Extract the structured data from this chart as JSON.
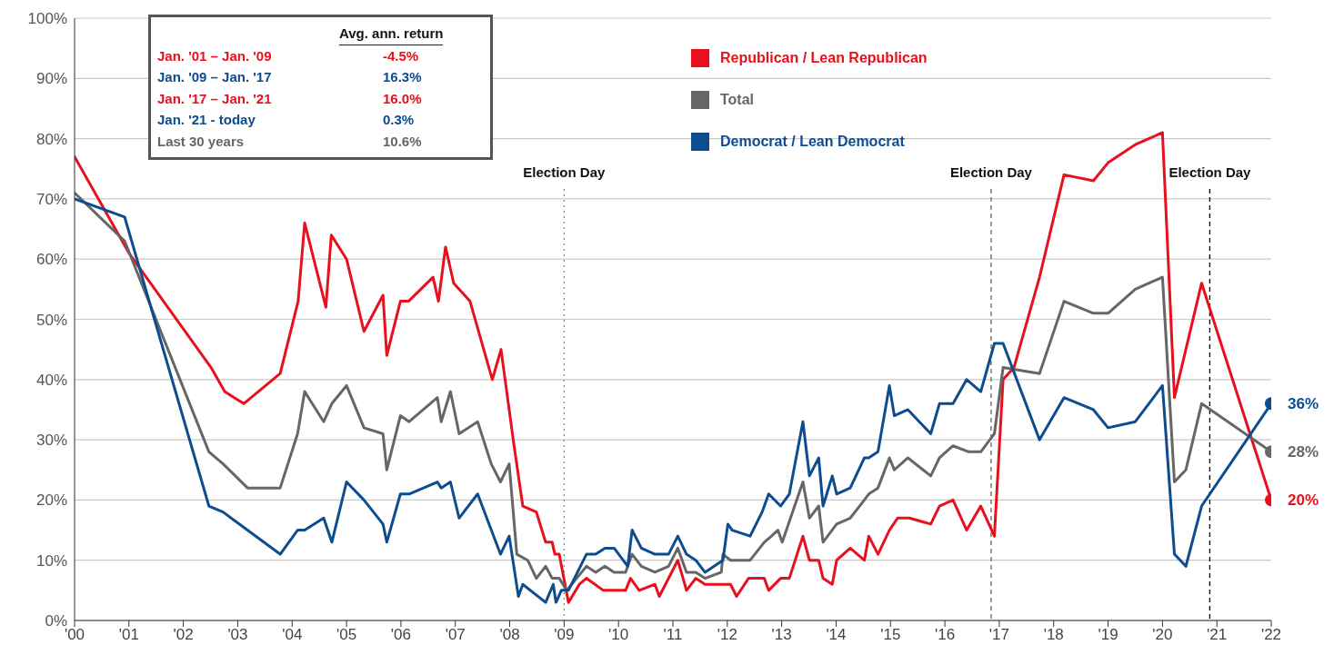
{
  "chart_data": {
    "type": "line",
    "xlim": [
      2000,
      2022
    ],
    "xticks": [
      {
        "value": 2000,
        "label": "'00"
      },
      {
        "value": 2001,
        "label": "'01"
      },
      {
        "value": 2002,
        "label": "'02"
      },
      {
        "value": 2003,
        "label": "'03"
      },
      {
        "value": 2004,
        "label": "'04"
      },
      {
        "value": 2005,
        "label": "'05"
      },
      {
        "value": 2006,
        "label": "'06"
      },
      {
        "value": 2007,
        "label": "'07"
      },
      {
        "value": 2008,
        "label": "'08"
      },
      {
        "value": 2009,
        "label": "'09"
      },
      {
        "value": 2010,
        "label": "'10"
      },
      {
        "value": 2011,
        "label": "'11"
      },
      {
        "value": 2012,
        "label": "'12"
      },
      {
        "value": 2013,
        "label": "'13"
      },
      {
        "value": 2014,
        "label": "'14"
      },
      {
        "value": 2015,
        "label": "'15"
      },
      {
        "value": 2016,
        "label": "'16"
      },
      {
        "value": 2017,
        "label": "'17"
      },
      {
        "value": 2018,
        "label": "'18"
      },
      {
        "value": 2019,
        "label": "'19"
      },
      {
        "value": 2020,
        "label": "'20"
      },
      {
        "value": 2021,
        "label": "'21"
      },
      {
        "value": 2022,
        "label": "'22"
      }
    ],
    "ylim": [
      0,
      100
    ],
    "yticks": [
      {
        "value": 0,
        "label": "0%"
      },
      {
        "value": 10,
        "label": "10%"
      },
      {
        "value": 20,
        "label": "20%"
      },
      {
        "value": 30,
        "label": "30%"
      },
      {
        "value": 40,
        "label": "40%"
      },
      {
        "value": 50,
        "label": "50%"
      },
      {
        "value": 60,
        "label": "60%"
      },
      {
        "value": 70,
        "label": "70%"
      },
      {
        "value": 80,
        "label": "80%"
      },
      {
        "value": 90,
        "label": "90%"
      },
      {
        "value": 100,
        "label": "100%"
      }
    ],
    "grid": "y",
    "legend": "top",
    "series": [
      {
        "name": "Republican / Lean Republican",
        "color": "#e8101c",
        "x": [
          2000,
          2001,
          2002.51,
          2002.76,
          2003.11,
          2003.78,
          2004.11,
          2004.23,
          2004.62,
          2004.72,
          2005,
          2005.32,
          2005.67,
          2005.74,
          2005.99,
          2006.14,
          2006.59,
          2006.69,
          2006.82,
          2006.97,
          2007.27,
          2007.68,
          2007.84,
          2008.08,
          2008.24,
          2008.49,
          2008.66,
          2008.78,
          2008.83,
          2008.91,
          2009.08,
          2009.28,
          2009.41,
          2009.72,
          2010.13,
          2010.22,
          2010.38,
          2010.67,
          2010.75,
          2011.09,
          2011.25,
          2011.42,
          2011.59,
          2012.06,
          2012.17,
          2012.39,
          2012.68,
          2012.76,
          2012.98,
          2013.14,
          2013.39,
          2013.51,
          2013.68,
          2013.76,
          2013.93,
          2014.01,
          2014.26,
          2014.52,
          2014.6,
          2014.77,
          2014.98,
          2015.13,
          2015.35,
          2015.74,
          2015.9,
          2016.15,
          2016.4,
          2016.66,
          2016.91,
          2017.07,
          2017.27,
          2017.74,
          2018.19,
          2018.73,
          2019,
          2019.5,
          2020,
          2020.22,
          2020.72,
          2022
        ],
        "values": [
          77,
          61,
          42,
          38,
          36,
          41,
          53,
          66,
          52,
          64,
          60,
          48,
          54,
          44,
          53,
          53,
          57,
          53,
          62,
          56,
          53,
          40,
          45,
          29,
          19,
          18,
          13,
          13,
          11,
          11,
          3,
          6,
          7,
          5,
          5,
          7,
          5,
          6,
          4,
          10,
          5,
          7,
          6,
          6,
          4,
          7,
          7,
          5,
          7,
          7,
          14,
          10,
          10,
          7,
          6,
          10,
          12,
          10,
          14,
          11,
          15,
          17,
          17,
          16,
          19,
          20,
          15,
          19,
          14,
          40,
          42,
          57,
          74,
          73,
          76,
          79,
          81,
          37,
          56,
          20
        ]
      },
      {
        "name": "Total",
        "color": "#666666",
        "x": [
          2000,
          2000.92,
          2002.47,
          2002.73,
          2003.18,
          2003.78,
          2004.1,
          2004.23,
          2004.58,
          2004.73,
          2005,
          2005.32,
          2005.67,
          2005.74,
          2005.99,
          2006.15,
          2006.67,
          2006.74,
          2006.91,
          2007.07,
          2007.41,
          2007.66,
          2007.83,
          2007.99,
          2008.13,
          2008.33,
          2008.49,
          2008.66,
          2008.78,
          2008.91,
          2009.05,
          2009.41,
          2009.58,
          2009.75,
          2009.92,
          2010.13,
          2010.25,
          2010.42,
          2010.67,
          2010.92,
          2011.09,
          2011.25,
          2011.42,
          2011.59,
          2011.89,
          2011.92,
          2012.06,
          2012.42,
          2012.68,
          2012.81,
          2012.93,
          2013.01,
          2013.39,
          2013.51,
          2013.68,
          2013.76,
          2014.01,
          2014.26,
          2014.52,
          2014.6,
          2014.77,
          2014.98,
          2015.07,
          2015.32,
          2015.74,
          2015.9,
          2016.15,
          2016.44,
          2016.66,
          2016.91,
          2017.07,
          2017.74,
          2018.19,
          2018.73,
          2019,
          2019.5,
          2020,
          2020.22,
          2020.43,
          2020.72,
          2022
        ],
        "values": [
          71,
          63,
          28,
          26,
          22,
          22,
          31,
          38,
          33,
          36,
          39,
          32,
          31,
          25,
          34,
          33,
          37,
          33,
          38,
          31,
          33,
          26,
          23,
          26,
          11,
          10,
          7,
          9,
          7,
          7,
          5,
          9,
          8,
          9,
          8,
          8,
          11,
          9,
          8,
          9,
          12,
          8,
          8,
          7,
          8,
          11,
          10,
          10,
          13,
          14,
          15,
          13,
          23,
          17,
          19,
          13,
          16,
          17,
          20,
          21,
          22,
          27,
          25,
          27,
          24,
          27,
          29,
          28,
          28,
          31,
          42,
          41,
          53,
          51,
          51,
          55,
          57,
          23,
          25,
          36,
          28
        ]
      },
      {
        "name": "Democrat / Lean Democrat",
        "color": "#0d4c8f",
        "x": [
          2000,
          2000.92,
          2002.47,
          2002.73,
          2003.78,
          2004.1,
          2004.23,
          2004.58,
          2004.73,
          2005,
          2005.32,
          2005.67,
          2005.74,
          2005.99,
          2006.15,
          2006.67,
          2006.74,
          2006.91,
          2007.07,
          2007.41,
          2007.83,
          2007.99,
          2008.16,
          2008.24,
          2008.66,
          2008.8,
          2008.85,
          2008.95,
          2009.08,
          2009.41,
          2009.58,
          2009.75,
          2009.92,
          2010.17,
          2010.25,
          2010.42,
          2010.67,
          2010.92,
          2011.09,
          2011.25,
          2011.42,
          2011.59,
          2011.92,
          2012.01,
          2012.09,
          2012.42,
          2012.64,
          2012.76,
          2012.98,
          2013.14,
          2013.39,
          2013.51,
          2013.68,
          2013.76,
          2013.93,
          2014.01,
          2014.26,
          2014.52,
          2014.6,
          2014.77,
          2014.98,
          2015.07,
          2015.32,
          2015.74,
          2015.9,
          2016.15,
          2016.4,
          2016.66,
          2016.91,
          2017.07,
          2017.74,
          2018.19,
          2018.73,
          2019,
          2019.5,
          2020,
          2020.22,
          2020.43,
          2020.72,
          2022
        ],
        "values": [
          70,
          67,
          19,
          18,
          11,
          15,
          15,
          17,
          13,
          23,
          20,
          16,
          13,
          21,
          21,
          23,
          22,
          23,
          17,
          21,
          11,
          14,
          4,
          6,
          3,
          6,
          3,
          5,
          5,
          11,
          11,
          12,
          12,
          9,
          15,
          12,
          11,
          11,
          14,
          11,
          10,
          8,
          10,
          16,
          15,
          14,
          18,
          21,
          19,
          21,
          33,
          24,
          27,
          19,
          24,
          21,
          22,
          27,
          27,
          28,
          39,
          34,
          35,
          31,
          36,
          36,
          40,
          38,
          46,
          46,
          30,
          37,
          35,
          32,
          33,
          39,
          11,
          9,
          19,
          36
        ]
      },
      {
        "type": "scatter",
        "x": [
          2022,
          2022,
          2022
        ],
        "values": [
          36,
          28,
          20
        ],
        "colors": [
          "#0d4c8f",
          "#666666",
          "#e8101c"
        ],
        "value_labels": [
          "36%",
          "28%",
          "20%"
        ]
      }
    ],
    "ref_lines": [
      {
        "axis": "x",
        "value": 2009,
        "label": "Election Day",
        "color": "#888888",
        "line_style": "dotted"
      },
      {
        "axis": "x",
        "value": 2016.85,
        "label": "Election Day",
        "color": "#666666",
        "line_style": "dashed"
      },
      {
        "axis": "x",
        "value": 2020.87,
        "label": "Election Day",
        "color": "#000000",
        "line_style": "dashed"
      }
    ],
    "annotations": [
      "Avg. ann. return",
      "Jan. '01 – Jan. '09",
      "-4.5%",
      "Jan. '09 – Jan. '17",
      "16.3%",
      "Jan. '17 – Jan. '21",
      "16.0%",
      "Jan. '21 - today",
      "0.3%",
      "Last 30 years",
      "10.6%"
    ]
  }
}
